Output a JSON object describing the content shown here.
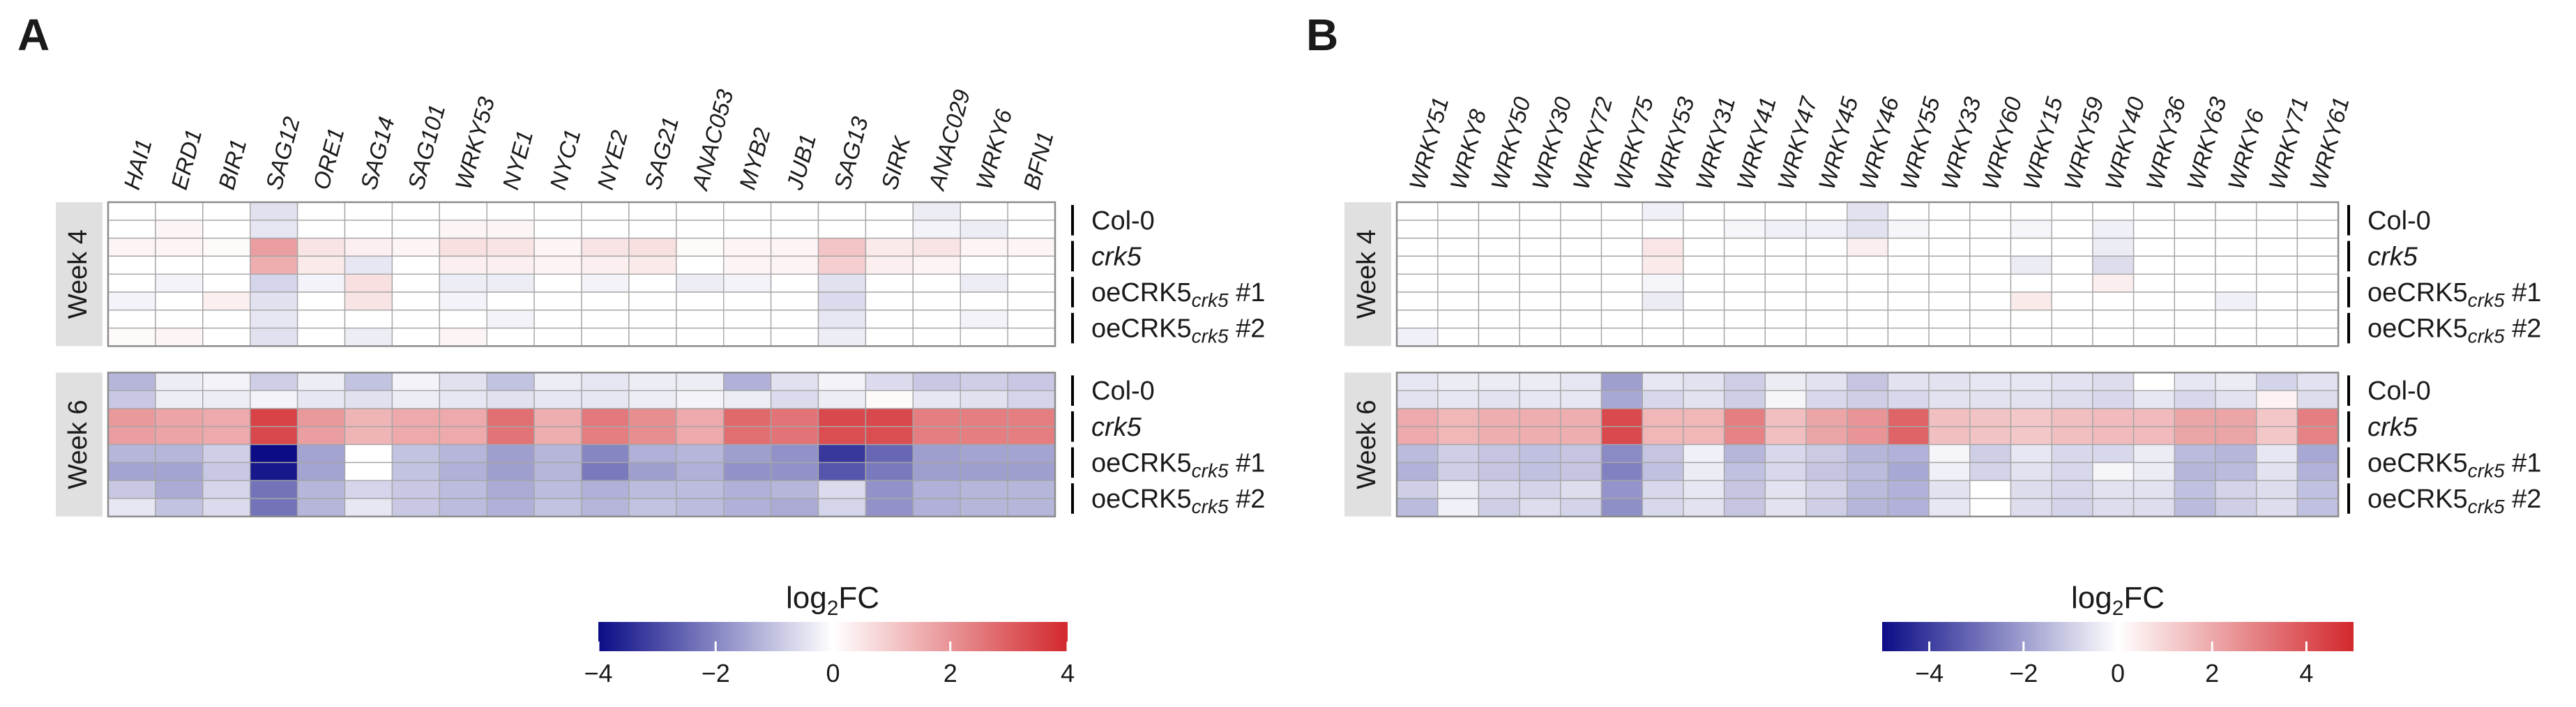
{
  "figure": {
    "colorbar_label": "log2FC",
    "week_labels": [
      "Week 4",
      "Week 6"
    ],
    "row_group_labels": [
      "Col-0",
      "crk5",
      "oeCRK5",
      "oeCRK5"
    ],
    "row_group_subscripts": [
      "",
      "",
      "crk5",
      "crk5"
    ],
    "row_group_suffixes": [
      "",
      "",
      " #1",
      " #2"
    ]
  },
  "chart_data": [
    {
      "type": "heatmap",
      "panel": "A",
      "title": "A",
      "columns": [
        "HAI1",
        "ERD1",
        "BIR1",
        "SAG12",
        "ORE1",
        "SAG14",
        "SAG101",
        "WRKY53",
        "NYE1",
        "NYC1",
        "NYE2",
        "SAG21",
        "ANAC053",
        "MYB2",
        "JUB1",
        "SAG13",
        "SIRK",
        "ANAC029",
        "WRKY6",
        "BFN1"
      ],
      "row_groups": [
        "Col-0",
        "crk5",
        "oeCRK5 crk5 #1",
        "oeCRK5 crk5 #2"
      ],
      "replicates_per_group": 2,
      "color_scale": {
        "min": -4,
        "max": 4,
        "low": "#0c0c87",
        "mid": "#ffffff",
        "high": "#d2282d",
        "ticks": [
          -4,
          -2,
          0,
          2,
          4
        ],
        "tick_labels": [
          "−4",
          "−2",
          "0",
          "2",
          "4"
        ]
      },
      "weeks": [
        {
          "label": "Week 4",
          "rows": [
            [
              0,
              0,
              0,
              -0.5,
              0,
              0,
              0,
              0,
              0,
              0,
              0,
              0,
              0,
              0,
              0,
              0,
              0,
              -0.3,
              0,
              0
            ],
            [
              0,
              0.2,
              0,
              -0.4,
              0,
              0,
              0,
              0.2,
              0.2,
              0,
              0,
              0,
              0,
              0,
              0,
              0,
              0,
              -0.2,
              -0.3,
              0
            ],
            [
              0.2,
              0.2,
              0.1,
              1.8,
              0.5,
              0.3,
              0.2,
              0.6,
              0.5,
              0.2,
              0.5,
              0.6,
              0.1,
              0.2,
              0.2,
              1.1,
              0.4,
              0.5,
              0.2,
              0.2
            ],
            [
              0,
              0,
              0,
              1.5,
              0.4,
              -0.4,
              0,
              0.3,
              0.3,
              0.2,
              0.3,
              0.4,
              0,
              0.2,
              0.2,
              0.9,
              0.3,
              0.2,
              0,
              0
            ],
            [
              0,
              -0.2,
              0,
              -0.7,
              -0.2,
              0.6,
              0,
              -0.3,
              -0.3,
              0,
              -0.2,
              0,
              -0.3,
              -0.2,
              0,
              -0.5,
              0,
              0,
              -0.3,
              0
            ],
            [
              -0.2,
              0,
              0.3,
              -0.5,
              0,
              0.5,
              0,
              -0.2,
              0,
              0,
              0,
              0,
              0,
              0,
              0,
              -0.6,
              0,
              0,
              0,
              0
            ],
            [
              0,
              0,
              0,
              -0.4,
              0,
              0,
              0,
              0,
              -0.2,
              0,
              0,
              0,
              0,
              0,
              0,
              -0.4,
              0,
              0,
              -0.2,
              0
            ],
            [
              0.1,
              0.2,
              0,
              -0.5,
              0,
              -0.3,
              0,
              0.2,
              0,
              0,
              0,
              0,
              0,
              0,
              0,
              -0.3,
              0,
              0,
              0,
              0
            ]
          ]
        },
        {
          "label": "Week 6",
          "rows": [
            [
              -1.2,
              -0.3,
              -0.2,
              -0.8,
              -0.3,
              -1,
              -0.2,
              -0.5,
              -1,
              -0.3,
              -0.4,
              -0.3,
              -0.3,
              -1.3,
              -0.5,
              -0.2,
              -0.6,
              -0.9,
              -0.8,
              -0.9
            ],
            [
              -0.9,
              -0.3,
              -0.3,
              -0.2,
              -0.4,
              -0.5,
              -0.3,
              -0.4,
              -0.5,
              -0.4,
              -0.4,
              -0.3,
              -0.2,
              -0.3,
              -0.6,
              -0.3,
              0.1,
              -0.4,
              -0.5,
              -0.7
            ],
            [
              1.9,
              1.7,
              1.6,
              3.5,
              1.9,
              1.4,
              1.6,
              1.6,
              2.7,
              1.5,
              2.5,
              2.1,
              1.6,
              2.8,
              2.6,
              3.4,
              3.4,
              2.4,
              2.4,
              2.4
            ],
            [
              1.8,
              1.7,
              1.6,
              3.4,
              1.8,
              1.4,
              1.6,
              1.6,
              2.6,
              1.5,
              2.4,
              2.1,
              1.6,
              2.7,
              2.6,
              3.3,
              3.3,
              2.4,
              2.4,
              2.4
            ],
            [
              -1.2,
              -1.2,
              -0.8,
              -4,
              -1.5,
              0,
              -1,
              -1.2,
              -1.6,
              -1.2,
              -2,
              -1.3,
              -1.2,
              -1.6,
              -1.8,
              -3.3,
              -2.5,
              -1.6,
              -1.5,
              -1.5
            ],
            [
              -1.5,
              -1.5,
              -0.9,
              -3.8,
              -1.5,
              0,
              -1,
              -1.3,
              -1.6,
              -1.2,
              -2.2,
              -1.6,
              -1.3,
              -1.8,
              -1.8,
              -2.8,
              -2.2,
              -1.6,
              -1.6,
              -1.6
            ],
            [
              -0.9,
              -1.4,
              -0.7,
              -2.3,
              -1.2,
              -0.7,
              -0.9,
              -1.1,
              -1.4,
              -1.1,
              -1.3,
              -1.1,
              -1.1,
              -1.3,
              -1.2,
              -0.6,
              -1.8,
              -1.3,
              -1.2,
              -1.2
            ],
            [
              -0.4,
              -1,
              -0.6,
              -2.3,
              -1.2,
              -0.4,
              -0.9,
              -1.1,
              -1.3,
              -1,
              -1.2,
              -1,
              -1.1,
              -1.3,
              -1.4,
              -0.7,
              -1.8,
              -1.3,
              -1.2,
              -1.2
            ]
          ]
        }
      ]
    },
    {
      "type": "heatmap",
      "panel": "B",
      "title": "B",
      "columns": [
        "WRKY51",
        "WRKY8",
        "WRKY50",
        "WRKY30",
        "WRKY72",
        "WRKY75",
        "WRKY53",
        "WRKY31",
        "WRKY41",
        "WRKY47",
        "WRKY45",
        "WRKY46",
        "WRKY55",
        "WRKY33",
        "WRKY60",
        "WRKY15",
        "WRKY59",
        "WRKY40",
        "WRKY36",
        "WRKY63",
        "WRKY6",
        "WRKY71",
        "WRKY61"
      ],
      "row_groups": [
        "Col-0",
        "crk5",
        "oeCRK5 crk5 #1",
        "oeCRK5 crk5 #2"
      ],
      "replicates_per_group": 2,
      "color_scale": {
        "min": -5,
        "max": 5,
        "low": "#0c0c87",
        "mid": "#ffffff",
        "high": "#d2282d",
        "ticks": [
          -4,
          -2,
          0,
          2,
          4
        ],
        "tick_labels": [
          "−4",
          "−2",
          "0",
          "2",
          "4"
        ]
      },
      "weeks": [
        {
          "label": "Week 4",
          "rows": [
            [
              0,
              0,
              0,
              0,
              0,
              0,
              -0.3,
              0,
              0,
              0,
              0,
              -0.6,
              0,
              0,
              0,
              0,
              0,
              0,
              0,
              0,
              0,
              0,
              0
            ],
            [
              0,
              0,
              0,
              0,
              0,
              0,
              0,
              0,
              -0.2,
              -0.3,
              -0.3,
              -0.6,
              -0.2,
              0,
              0,
              -0.2,
              0,
              -0.3,
              0,
              0,
              0,
              0,
              0
            ],
            [
              0,
              0,
              0,
              0,
              0,
              0,
              0.6,
              0,
              0,
              0,
              0,
              0.4,
              0,
              0,
              0,
              0,
              0,
              -0.4,
              0,
              0,
              0,
              0,
              0
            ],
            [
              0,
              0,
              0,
              0,
              0,
              0,
              0.5,
              0,
              0,
              0,
              0,
              0,
              0,
              0,
              0,
              -0.4,
              0,
              -0.7,
              0,
              0,
              0,
              0,
              0
            ],
            [
              0,
              0,
              0,
              0,
              0,
              0,
              -0.2,
              0,
              0,
              0,
              0,
              0,
              0,
              0,
              0,
              0,
              0,
              0.4,
              0,
              0,
              0,
              0,
              0
            ],
            [
              0,
              0,
              0,
              0,
              0,
              0,
              -0.4,
              0,
              0,
              0,
              0,
              0,
              0,
              0,
              0,
              0.5,
              0,
              0,
              0,
              0,
              -0.3,
              0,
              0
            ],
            [
              0,
              0,
              0,
              0,
              0,
              0,
              0,
              0,
              0,
              0,
              0,
              0,
              0,
              0,
              0,
              0,
              0,
              0,
              0,
              0,
              0,
              0,
              0
            ],
            [
              -0.3,
              0,
              0,
              0,
              0,
              0,
              0,
              0,
              0,
              0,
              0,
              0,
              0,
              0,
              0,
              0,
              0,
              0,
              0,
              0,
              0,
              0,
              0
            ]
          ]
        },
        {
          "label": "Week 6",
          "rows": [
            [
              -0.5,
              -0.4,
              -0.4,
              -0.4,
              -0.5,
              -2,
              -0.5,
              -0.6,
              -1,
              -0.4,
              -0.6,
              -1.2,
              -0.6,
              -0.6,
              -0.5,
              -0.5,
              -0.6,
              -0.7,
              0,
              -0.5,
              -0.4,
              -0.9,
              -0.6
            ],
            [
              -0.6,
              -0.5,
              -0.6,
              -0.5,
              -0.5,
              -1.8,
              -0.8,
              -0.6,
              -1,
              -0.2,
              -0.8,
              -1,
              -0.8,
              -0.6,
              -0.6,
              -0.6,
              -0.7,
              -0.8,
              -0.5,
              -0.8,
              -0.6,
              0.3,
              -0.7
            ],
            [
              2,
              1.7,
              1.9,
              1.9,
              1.9,
              4.2,
              1.7,
              1.7,
              3,
              1.5,
              2.1,
              2.5,
              3.6,
              1.5,
              1.4,
              1.3,
              1.5,
              1.6,
              1.6,
              2.1,
              2.1,
              1.3,
              3
            ],
            [
              2,
              1.7,
              1.9,
              1.9,
              1.9,
              4.2,
              1.7,
              1.7,
              2.9,
              1.5,
              2.1,
              2.5,
              3.6,
              1.5,
              1.4,
              1.3,
              1.5,
              1.6,
              1.6,
              2.1,
              2.1,
              1.3,
              2.9
            ],
            [
              -1.4,
              -1,
              -1.2,
              -1.3,
              -1.2,
              -2.4,
              -1.2,
              -0.3,
              -1.5,
              -0.8,
              -1.1,
              -1.5,
              -1.6,
              -0.2,
              -1,
              -0.5,
              -0.8,
              -0.8,
              -0.4,
              -1.4,
              -1.5,
              -0.5,
              -1.8
            ],
            [
              -1.6,
              -1,
              -1.2,
              -1.3,
              -1.2,
              -2.6,
              -1.3,
              -0.4,
              -1.3,
              -0.8,
              -1.2,
              -1.4,
              -1.8,
              -0.3,
              -0.9,
              -0.6,
              -0.8,
              -0.2,
              -0.4,
              -1.5,
              -1.4,
              -0.6,
              -1.6
            ],
            [
              -1,
              -0.4,
              -0.8,
              -0.9,
              -0.7,
              -2.2,
              -0.8,
              -0.5,
              -1.2,
              -0.6,
              -0.9,
              -1.4,
              -1.6,
              -0.6,
              0,
              -0.7,
              -0.8,
              -0.6,
              -0.6,
              -1.3,
              -0.9,
              -0.7,
              -1.3
            ],
            [
              -1.4,
              -0.3,
              -1,
              -0.7,
              -0.9,
              -2.3,
              -0.8,
              -0.6,
              -1.2,
              -0.6,
              -1,
              -1.5,
              -1.6,
              -0.5,
              0,
              -0.7,
              -0.9,
              -0.7,
              -0.7,
              -1.4,
              -1,
              -0.7,
              -1.3
            ]
          ]
        }
      ]
    }
  ]
}
